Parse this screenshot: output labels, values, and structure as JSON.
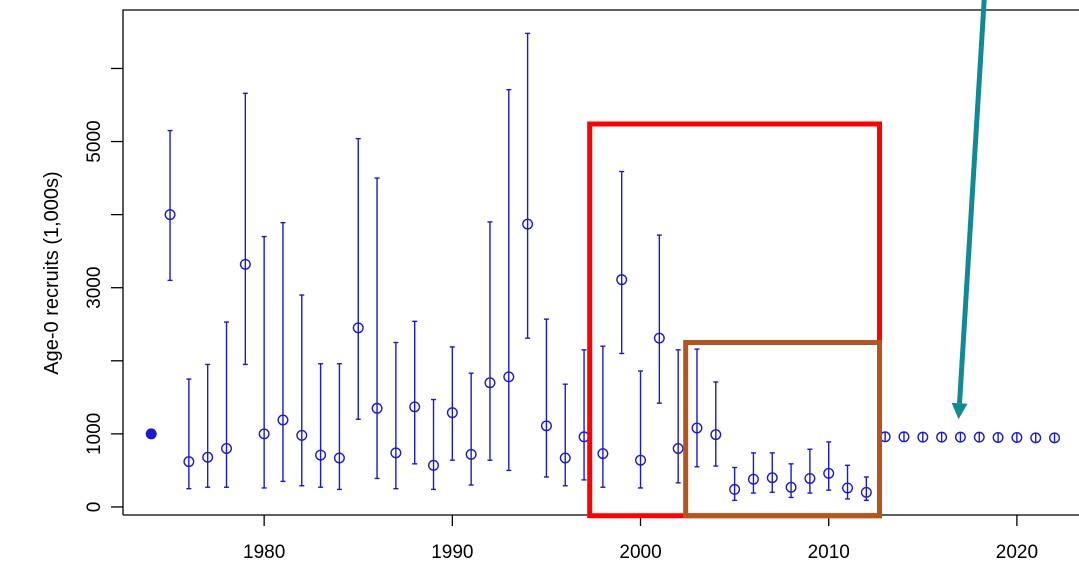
{
  "chart_data": {
    "type": "scatter",
    "title": "",
    "xlabel": "",
    "ylabel": "Age-0 recruits (1,000s)",
    "xlim": [
      1972.5,
      2023.3
    ],
    "ylim": [
      -110,
      6800
    ],
    "x_ticks": [
      1980,
      1990,
      2000,
      2010,
      2020
    ],
    "y_ticks": [
      0,
      1000,
      3000,
      5000
    ],
    "grid": false,
    "colors": {
      "series": "#1a1acc",
      "highlight_red": "#ff0000",
      "highlight_brown": "#b4541e",
      "arrow": "#128a96"
    },
    "series": [
      {
        "marker": "open-circle-with-error-bars",
        "points": [
          {
            "x": 1975,
            "y": 4000,
            "lo": 3100,
            "hi": 5150
          },
          {
            "x": 1976,
            "y": 620,
            "lo": 250,
            "hi": 1750
          },
          {
            "x": 1977,
            "y": 680,
            "lo": 270,
            "hi": 1950
          },
          {
            "x": 1978,
            "y": 800,
            "lo": 270,
            "hi": 2530
          },
          {
            "x": 1979,
            "y": 3320,
            "lo": 1950,
            "hi": 5660
          },
          {
            "x": 1980,
            "y": 1000,
            "lo": 260,
            "hi": 3700
          },
          {
            "x": 1981,
            "y": 1190,
            "lo": 350,
            "hi": 3890
          },
          {
            "x": 1982,
            "y": 980,
            "lo": 290,
            "hi": 2900
          },
          {
            "x": 1983,
            "y": 710,
            "lo": 270,
            "hi": 1960
          },
          {
            "x": 1984,
            "y": 670,
            "lo": 240,
            "hi": 1960
          },
          {
            "x": 1985,
            "y": 2450,
            "lo": 1200,
            "hi": 5040
          },
          {
            "x": 1986,
            "y": 1350,
            "lo": 390,
            "hi": 4500
          },
          {
            "x": 1987,
            "y": 740,
            "lo": 250,
            "hi": 2250
          },
          {
            "x": 1988,
            "y": 1370,
            "lo": 590,
            "hi": 2540
          },
          {
            "x": 1989,
            "y": 570,
            "lo": 240,
            "hi": 1470
          },
          {
            "x": 1990,
            "y": 1290,
            "lo": 640,
            "hi": 2190
          },
          {
            "x": 1991,
            "y": 720,
            "lo": 300,
            "hi": 1830
          },
          {
            "x": 1992,
            "y": 1700,
            "lo": 640,
            "hi": 3900
          },
          {
            "x": 1993,
            "y": 1780,
            "lo": 500,
            "hi": 5710
          },
          {
            "x": 1994,
            "y": 3870,
            "lo": 2310,
            "hi": 6480
          },
          {
            "x": 1995,
            "y": 1110,
            "lo": 410,
            "hi": 2570
          },
          {
            "x": 1996,
            "y": 670,
            "lo": 290,
            "hi": 1680
          },
          {
            "x": 1997,
            "y": 960,
            "lo": 370,
            "hi": 2150
          },
          {
            "x": 1998,
            "y": 730,
            "lo": 270,
            "hi": 2200
          },
          {
            "x": 1999,
            "y": 3110,
            "lo": 2100,
            "hi": 4590
          },
          {
            "x": 2000,
            "y": 640,
            "lo": 260,
            "hi": 1860
          },
          {
            "x": 2001,
            "y": 2310,
            "lo": 1420,
            "hi": 3720
          },
          {
            "x": 2002,
            "y": 800,
            "lo": 330,
            "hi": 2150
          },
          {
            "x": 2003,
            "y": 1080,
            "lo": 550,
            "hi": 2160
          },
          {
            "x": 2004,
            "y": 990,
            "lo": 560,
            "hi": 1710
          },
          {
            "x": 2005,
            "y": 240,
            "lo": 90,
            "hi": 540
          },
          {
            "x": 2006,
            "y": 380,
            "lo": 190,
            "hi": 740
          },
          {
            "x": 2007,
            "y": 400,
            "lo": 200,
            "hi": 740
          },
          {
            "x": 2008,
            "y": 270,
            "lo": 130,
            "hi": 590
          },
          {
            "x": 2009,
            "y": 390,
            "lo": 190,
            "hi": 790
          },
          {
            "x": 2010,
            "y": 460,
            "lo": 230,
            "hi": 890
          },
          {
            "x": 2011,
            "y": 260,
            "lo": 110,
            "hi": 570
          },
          {
            "x": 2012,
            "y": 200,
            "lo": 90,
            "hi": 410
          }
        ]
      },
      {
        "marker": "filled-dot",
        "points": [
          {
            "x": 1974,
            "y": 1000
          }
        ]
      },
      {
        "marker": "open-circle-small-bar",
        "points": [
          {
            "x": 2013,
            "y": 960
          },
          {
            "x": 2014,
            "y": 960
          },
          {
            "x": 2015,
            "y": 955
          },
          {
            "x": 2016,
            "y": 955
          },
          {
            "x": 2017,
            "y": 955
          },
          {
            "x": 2018,
            "y": 955
          },
          {
            "x": 2019,
            "y": 950
          },
          {
            "x": 2020,
            "y": 950
          },
          {
            "x": 2021,
            "y": 945
          },
          {
            "x": 2022,
            "y": 945
          }
        ]
      }
    ],
    "highlight_boxes": [
      {
        "color": "red",
        "x_from": 1997.3,
        "x_to": 2012.7,
        "y_from": -120,
        "y_to": 5240
      },
      {
        "color": "brown",
        "x_from": 2002.4,
        "x_to": 2012.7,
        "y_from": -120,
        "y_to": 2250
      }
    ],
    "arrow": {
      "from_x": 2018.3,
      "from_y": 7100,
      "to_x": 2016.9,
      "to_y": 1200
    }
  }
}
